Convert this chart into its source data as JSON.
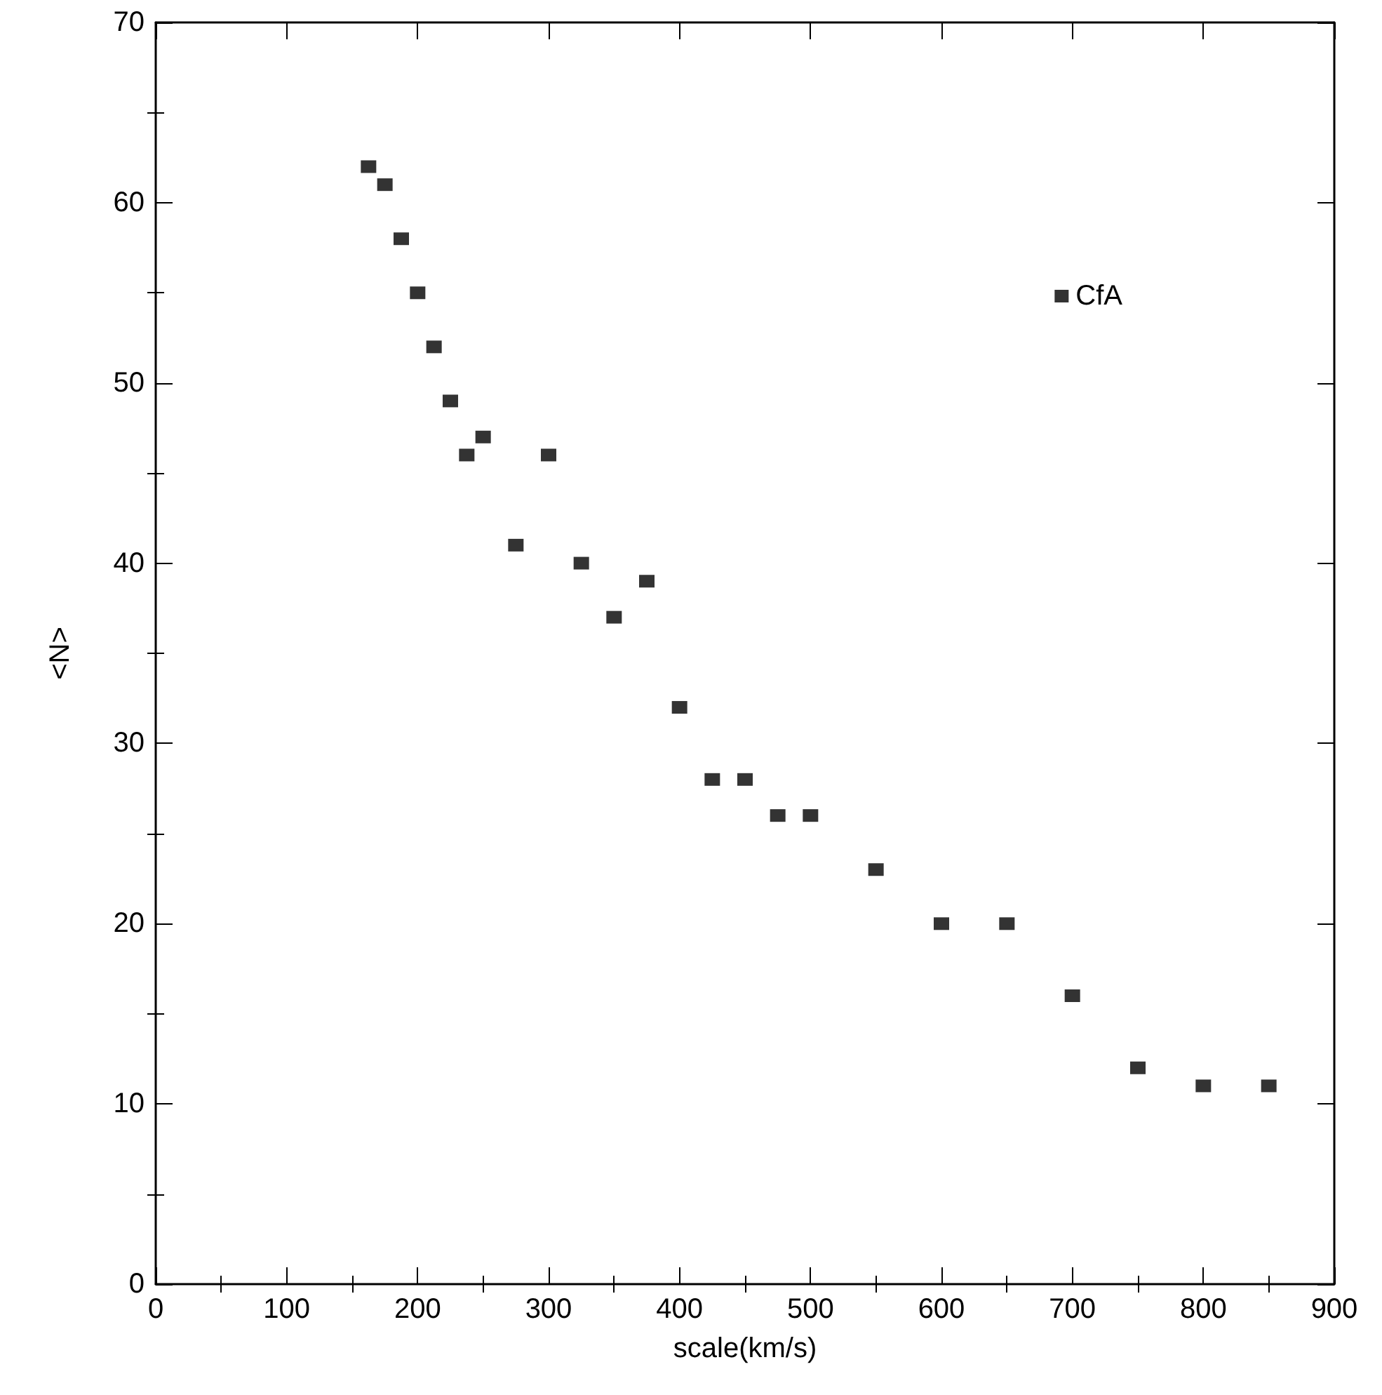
{
  "chart_data": {
    "type": "scatter",
    "xlabel": "scale(km/s)",
    "ylabel": "<N>",
    "x": [
      162.5,
      175,
      187.5,
      200,
      212.5,
      225,
      237.5,
      250,
      275,
      300,
      325,
      350,
      375,
      400,
      425,
      450,
      475,
      500,
      550,
      600,
      650,
      700,
      750,
      800,
      850
    ],
    "series": [
      {
        "name": "CfA",
        "color": "#000000",
        "values": [
          62,
          61,
          58,
          55,
          52,
          49,
          46,
          47,
          41,
          46,
          40,
          37,
          39,
          32,
          28,
          28,
          26,
          26,
          23,
          20,
          20,
          16,
          12,
          11,
          11
        ]
      }
    ],
    "xlim": [
      0,
      900
    ],
    "xticks": [
      0,
      100,
      200,
      300,
      400,
      500,
      600,
      700,
      800,
      900
    ],
    "ylim": [
      0,
      70
    ],
    "yticks": [
      0,
      10,
      20,
      30,
      40,
      50,
      60,
      70
    ],
    "grid": false,
    "legend": "top right",
    "marker": "square"
  }
}
